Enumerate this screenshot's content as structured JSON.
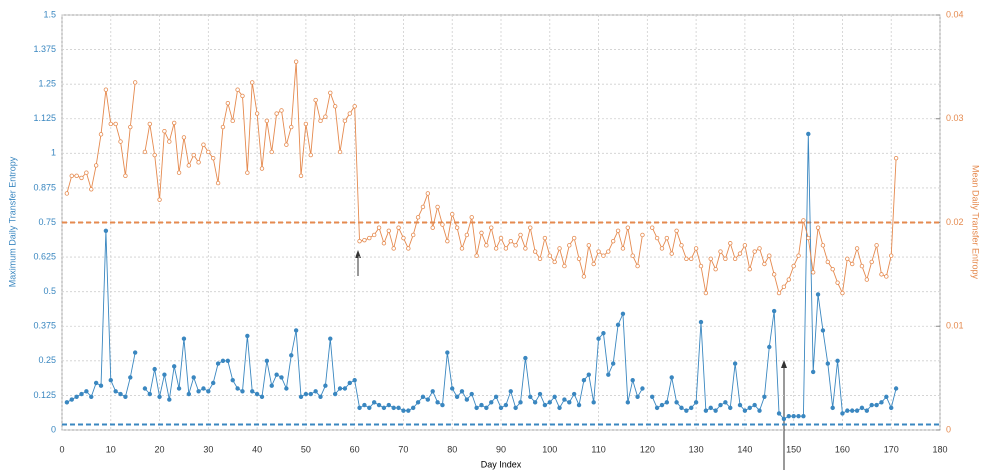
{
  "chart_data": {
    "type": "line",
    "xlabel": "Day Index",
    "ylabel": "Maximum Daily Transfer Entropy",
    "y2label": "Mean Daily Transfer Entropy",
    "xlim": [
      0,
      180
    ],
    "xticks": [
      0,
      10,
      20,
      30,
      40,
      50,
      60,
      70,
      80,
      90,
      100,
      110,
      120,
      130,
      140,
      150,
      160,
      170,
      180
    ],
    "ylim": [
      0,
      1.5
    ],
    "yticks": [
      0,
      0.125,
      0.25,
      0.375,
      0.5,
      0.625,
      0.75,
      0.875,
      1,
      1.125,
      1.25,
      1.375,
      1.5
    ],
    "y2lim": [
      0,
      0.04
    ],
    "y2ticks": [
      0,
      0.01,
      0.02,
      0.03,
      0.04
    ],
    "grid": true,
    "ylabel_color": "#3a87c0",
    "y2label_color": "#e58a4f",
    "x": [
      1,
      2,
      3,
      4,
      5,
      6,
      7,
      8,
      9,
      10,
      11,
      12,
      13,
      14,
      15,
      16,
      17,
      18,
      19,
      20,
      21,
      22,
      23,
      24,
      25,
      26,
      27,
      28,
      29,
      30,
      31,
      32,
      33,
      34,
      35,
      36,
      37,
      38,
      39,
      40,
      41,
      42,
      43,
      44,
      45,
      46,
      47,
      48,
      49,
      50,
      51,
      52,
      53,
      54,
      55,
      56,
      57,
      58,
      59,
      60,
      61,
      62,
      63,
      64,
      65,
      66,
      67,
      68,
      69,
      70,
      71,
      72,
      73,
      74,
      75,
      76,
      77,
      78,
      79,
      80,
      81,
      82,
      83,
      84,
      85,
      86,
      87,
      88,
      89,
      90,
      91,
      92,
      93,
      94,
      95,
      96,
      97,
      98,
      99,
      100,
      101,
      102,
      103,
      104,
      105,
      106,
      107,
      108,
      109,
      110,
      111,
      112,
      113,
      114,
      115,
      116,
      117,
      118,
      119,
      120,
      121,
      122,
      123,
      124,
      125,
      126,
      127,
      128,
      129,
      130,
      131,
      132,
      133,
      134,
      135,
      136,
      137,
      138,
      139,
      140,
      141,
      142,
      143,
      144,
      145,
      146,
      147,
      148,
      149,
      150,
      151,
      152,
      153,
      154,
      155,
      156,
      157,
      158,
      159,
      160,
      161,
      162,
      163,
      164,
      165,
      166,
      167,
      168,
      169,
      170,
      171
    ],
    "series": [
      {
        "color": "#3a87c0",
        "axis": "y",
        "values": [
          0.1,
          0.11,
          0.12,
          0.13,
          0.14,
          0.12,
          0.17,
          0.16,
          0.72,
          0.18,
          0.14,
          0.13,
          0.12,
          0.19,
          0.28,
          null,
          0.15,
          0.13,
          0.22,
          0.12,
          0.2,
          0.11,
          0.23,
          0.15,
          0.33,
          0.13,
          0.19,
          0.14,
          0.15,
          0.14,
          0.17,
          0.24,
          0.25,
          0.25,
          0.18,
          0.15,
          0.14,
          0.34,
          0.14,
          0.13,
          0.12,
          0.25,
          0.16,
          0.2,
          0.19,
          0.15,
          0.27,
          0.36,
          0.12,
          0.13,
          0.13,
          0.14,
          0.12,
          0.16,
          0.33,
          0.13,
          0.15,
          0.15,
          0.17,
          0.18,
          0.08,
          0.09,
          0.08,
          0.1,
          0.09,
          0.08,
          0.09,
          0.08,
          0.08,
          0.07,
          0.07,
          0.08,
          0.1,
          0.12,
          0.11,
          0.14,
          0.1,
          0.09,
          0.28,
          0.15,
          0.12,
          0.14,
          0.11,
          0.13,
          0.08,
          0.09,
          0.08,
          0.1,
          0.12,
          0.08,
          0.09,
          0.14,
          0.08,
          0.1,
          0.26,
          0.12,
          0.1,
          0.13,
          0.09,
          0.1,
          0.12,
          0.08,
          0.11,
          0.1,
          0.13,
          0.09,
          0.18,
          0.2,
          0.1,
          0.33,
          0.35,
          0.2,
          0.24,
          0.38,
          0.42,
          0.1,
          0.18,
          0.12,
          0.15,
          null,
          0.12,
          0.08,
          0.09,
          0.1,
          0.19,
          0.1,
          0.08,
          0.07,
          0.08,
          0.1,
          0.39,
          0.07,
          0.08,
          0.07,
          0.09,
          0.1,
          0.08,
          0.24,
          0.09,
          0.07,
          0.08,
          0.09,
          0.07,
          0.12,
          0.3,
          0.43,
          0.06,
          0.04,
          0.05,
          0.05,
          0.05,
          0.05,
          1.07,
          0.21,
          0.49,
          0.36,
          0.24,
          0.08,
          0.25,
          0.06,
          0.07,
          0.07,
          0.07,
          0.08,
          0.07,
          0.09,
          0.09,
          0.1,
          0.12,
          0.08,
          0.15
        ]
      },
      {
        "color": "#e58a4f",
        "axis": "y2",
        "values": [
          0.0228,
          0.0245,
          0.0245,
          0.0243,
          0.0248,
          0.0232,
          0.0255,
          0.0285,
          0.0328,
          0.0295,
          0.0295,
          0.0278,
          0.0245,
          0.0292,
          0.0335,
          null,
          0.0268,
          0.0295,
          0.0265,
          0.0222,
          0.0288,
          0.0278,
          0.0296,
          0.0248,
          0.0282,
          0.0255,
          0.0265,
          0.0258,
          0.0275,
          0.0268,
          0.0262,
          0.0238,
          0.0292,
          0.0315,
          0.0298,
          0.0328,
          0.0322,
          0.0248,
          0.0335,
          0.0305,
          0.0252,
          0.0298,
          0.0268,
          0.0305,
          0.0308,
          0.0275,
          0.0292,
          0.0355,
          0.0245,
          0.0295,
          0.0265,
          0.0318,
          0.0298,
          0.0302,
          0.0325,
          0.0312,
          0.0268,
          0.0298,
          0.0305,
          0.0312,
          0.0182,
          0.0183,
          0.0185,
          0.0188,
          0.0195,
          0.018,
          0.0192,
          0.0175,
          0.0195,
          0.0185,
          0.0175,
          0.0188,
          0.0205,
          0.0215,
          0.0228,
          0.0195,
          0.0215,
          0.0198,
          0.0182,
          0.0208,
          0.0195,
          0.0175,
          0.0188,
          0.0205,
          0.0168,
          0.019,
          0.0178,
          0.0195,
          0.0175,
          0.0185,
          0.0175,
          0.0182,
          0.0178,
          0.0188,
          0.0175,
          0.0195,
          0.0172,
          0.0165,
          0.0185,
          0.0168,
          0.0162,
          0.0175,
          0.0158,
          0.0178,
          0.0185,
          0.0165,
          0.0148,
          0.0178,
          0.016,
          0.0172,
          0.0168,
          0.0172,
          0.0182,
          0.0192,
          0.0175,
          0.0195,
          0.0168,
          0.0158,
          0.0188,
          null,
          0.0195,
          0.0185,
          0.0175,
          0.0185,
          0.017,
          0.0192,
          0.0178,
          0.0165,
          0.0165,
          0.0175,
          0.0158,
          0.0132,
          0.0165,
          0.0155,
          0.0172,
          0.0165,
          0.018,
          0.0165,
          0.017,
          0.0178,
          0.0155,
          0.0172,
          0.0175,
          0.016,
          0.0168,
          0.015,
          0.0132,
          0.0138,
          0.0145,
          0.0158,
          0.0168,
          0.0202,
          0.0185,
          0.0152,
          0.0195,
          0.0178,
          0.0162,
          0.0155,
          0.0142,
          0.0132,
          0.0165,
          0.016,
          0.0175,
          0.0158,
          0.0145,
          0.0162,
          0.0178,
          0.015,
          0.0148,
          0.0168,
          0.0262
        ]
      }
    ],
    "thresholds": [
      {
        "axis": "y",
        "value": 0.02,
        "color": "#3a87c0"
      },
      {
        "axis": "y2",
        "value": 0.02,
        "color": "#e58a4f"
      }
    ]
  }
}
